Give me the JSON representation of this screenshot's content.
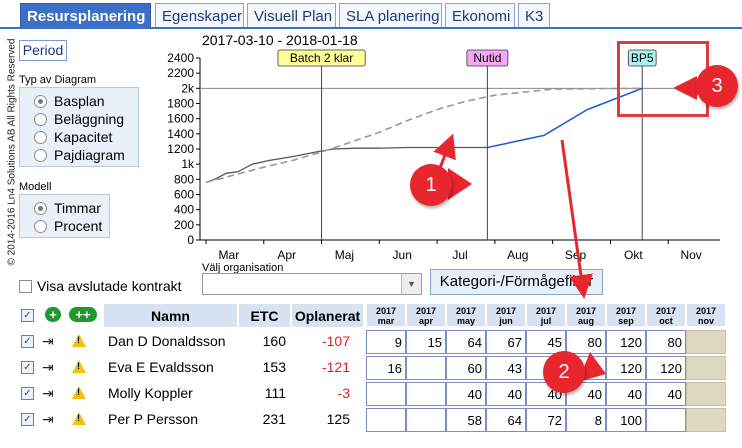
{
  "tabs": [
    {
      "label": "Resursplanering",
      "active": true
    },
    {
      "label": "Egenskaper"
    },
    {
      "label": "Visuell Plan"
    },
    {
      "label": "SLA planering"
    },
    {
      "label": "Ekonomi"
    },
    {
      "label": "K3"
    }
  ],
  "copyright": "© 2014-2016 Ln4 Solutions AB All Rights Reserved",
  "period_button": "Period",
  "diagram_type": {
    "label": "Typ av Diagram",
    "options": [
      "Basplan",
      "Beläggning",
      "Kapacitet",
      "Pajdiagram"
    ],
    "selected": "Basplan"
  },
  "model": {
    "label": "Modell",
    "options": [
      "Timmar",
      "Procent"
    ],
    "selected": "Timmar"
  },
  "date_range": "2017-03-10 - 2018-01-18",
  "chart_data": {
    "type": "line",
    "x_months": [
      "Mar",
      "Apr",
      "Maj",
      "Jun",
      "Jul",
      "Aug",
      "Sep",
      "Okt",
      "Nov"
    ],
    "y_ticks": [
      "0",
      "200",
      "400",
      "600",
      "800",
      "1k",
      "1200",
      "1400",
      "1600",
      "1800",
      "2k",
      "2200",
      "2400"
    ],
    "ylim": [
      0,
      2400
    ],
    "markers": [
      {
        "label": "Batch 2 klar",
        "month": 2.0,
        "color": "#ffff99"
      },
      {
        "label": "Nutid",
        "month": 4.87,
        "color": "#f6a6f6"
      },
      {
        "label": "BP5",
        "month": 7.55,
        "color": "#aef3f0"
      }
    ],
    "target_line": 2000,
    "series": [
      {
        "style": "solid-grey",
        "points": [
          [
            0,
            760
          ],
          [
            0.15,
            800
          ],
          [
            0.35,
            880
          ],
          [
            0.55,
            900
          ],
          [
            0.8,
            1000
          ],
          [
            1.1,
            1050
          ],
          [
            1.5,
            1100
          ],
          [
            1.9,
            1160
          ],
          [
            2.2,
            1200
          ],
          [
            2.6,
            1210
          ],
          [
            3.0,
            1210
          ],
          [
            3.5,
            1220
          ],
          [
            4.0,
            1220
          ],
          [
            4.87,
            1220
          ]
        ]
      },
      {
        "style": "solid-blue",
        "points": [
          [
            4.87,
            1220
          ],
          [
            5.85,
            1380
          ],
          [
            6.6,
            1720
          ],
          [
            7.55,
            2000
          ]
        ]
      },
      {
        "style": "dashed-grey",
        "points": [
          [
            0,
            760
          ],
          [
            0.5,
            860
          ],
          [
            1.0,
            960
          ],
          [
            1.5,
            1050
          ],
          [
            2.0,
            1160
          ],
          [
            2.5,
            1290
          ],
          [
            3.0,
            1420
          ],
          [
            3.5,
            1580
          ],
          [
            4.0,
            1720
          ],
          [
            4.5,
            1830
          ],
          [
            5.0,
            1910
          ],
          [
            5.5,
            1950
          ],
          [
            6.0,
            1990
          ],
          [
            7.55,
            2000
          ]
        ]
      }
    ]
  },
  "visa_avslutade": "Visa avslutade kontrakt",
  "org_label": "Välj organisation",
  "kategori_button": "Kategori-/Förmågefilter",
  "table": {
    "headers": {
      "namn": "Namn",
      "etc": "ETC",
      "oplanerat": "Oplanerat"
    },
    "months": [
      {
        "year": "2017",
        "month": "mar"
      },
      {
        "year": "2017",
        "month": "apr"
      },
      {
        "year": "2017",
        "month": "may"
      },
      {
        "year": "2017",
        "month": "jun"
      },
      {
        "year": "2017",
        "month": "jul"
      },
      {
        "year": "2017",
        "month": "aug"
      },
      {
        "year": "2017",
        "month": "sep"
      },
      {
        "year": "2017",
        "month": "oct"
      },
      {
        "year": "2017",
        "month": "nov"
      }
    ],
    "rows": [
      {
        "name": "Dan D Donaldsson",
        "etc": "160",
        "oplanerat": "-107",
        "values": [
          "9",
          "15",
          "64",
          "67",
          "45",
          "80",
          "120",
          "80",
          ""
        ]
      },
      {
        "name": "Eva E Evaldsson",
        "etc": "153",
        "oplanerat": "-121",
        "values": [
          "16",
          "",
          "60",
          "43",
          "",
          "",
          "120",
          "120",
          ""
        ]
      },
      {
        "name": "Molly Koppler",
        "etc": "111",
        "oplanerat": "-3",
        "values": [
          "",
          "",
          "40",
          "40",
          "40",
          "40",
          "40",
          "40",
          ""
        ]
      },
      {
        "name": "Per P Persson",
        "etc": "231",
        "oplanerat": "125",
        "values": [
          "",
          "",
          "58",
          "64",
          "72",
          "8",
          "100",
          "",
          ""
        ]
      }
    ]
  },
  "callouts": [
    "1",
    "2",
    "3"
  ],
  "colors": {
    "tab_active": "#3d6fc6",
    "negative": "#e02020",
    "callout": "#e8262d",
    "plan_line": "#2060d0"
  }
}
